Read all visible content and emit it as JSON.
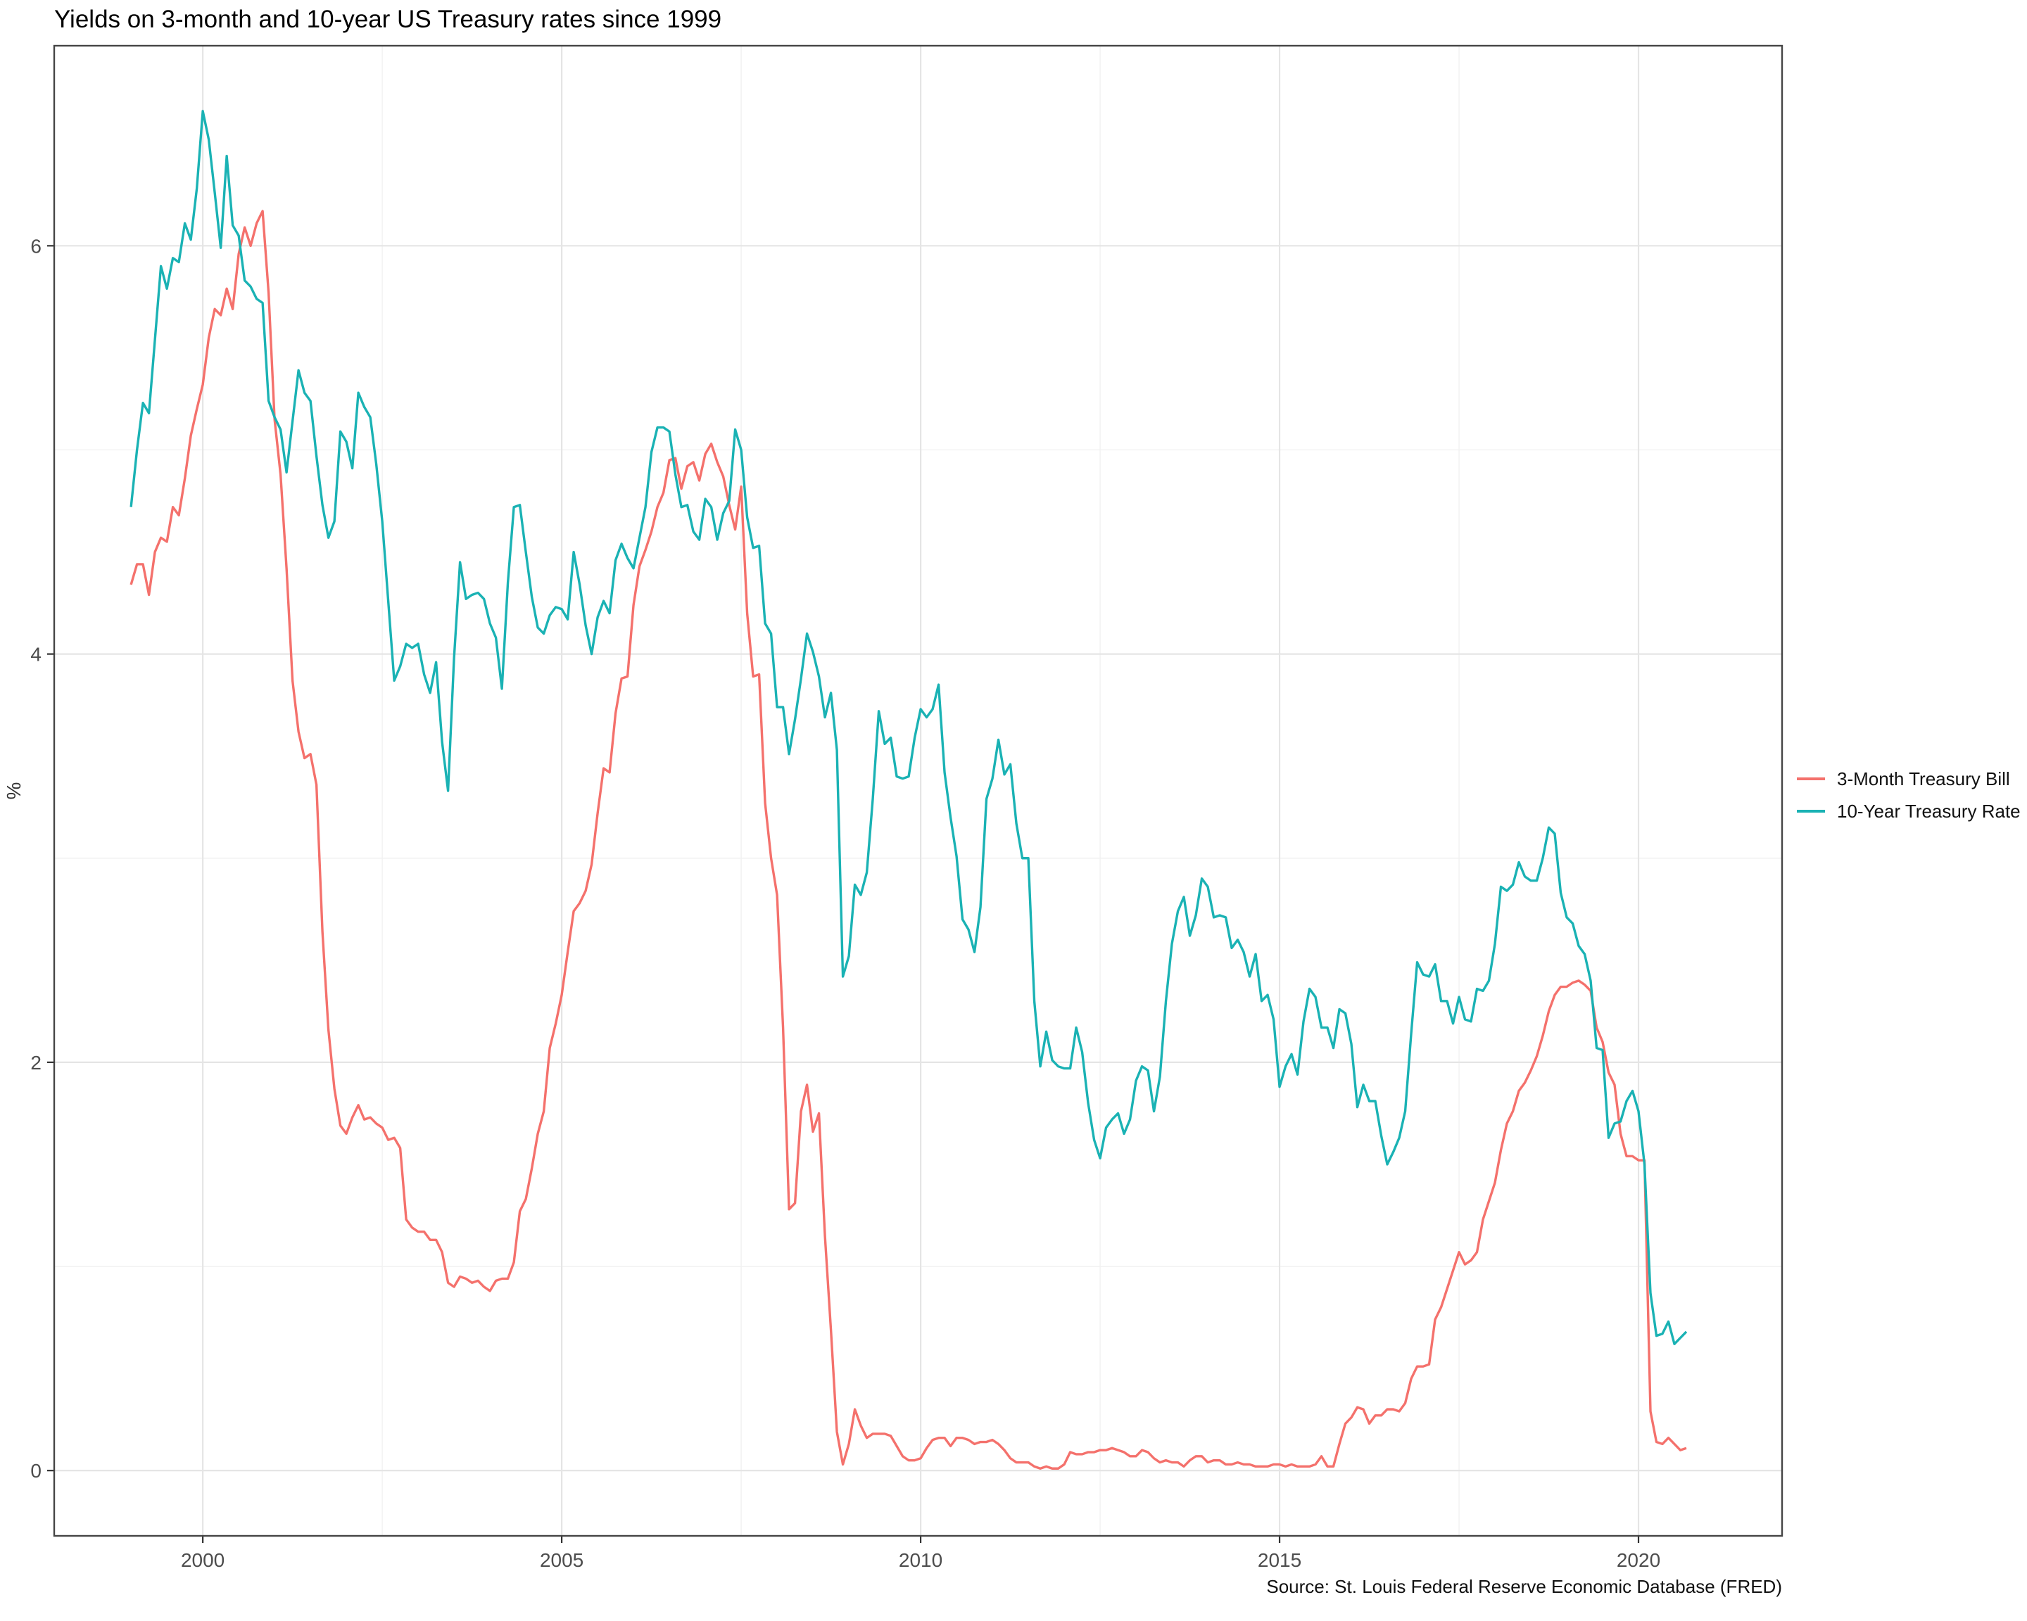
{
  "title": "Yields on 3-month and 10-year US Treasury rates since 1999",
  "y_axis_label": "%",
  "caption": "Source: St. Louis Federal Reserve Economic Database (FRED)",
  "colors": {
    "red": "#F4716C",
    "teal": "#1AB2B4"
  },
  "legend": {
    "items": [
      {
        "label": "3-Month Treasury Bill",
        "color": "#F4716C"
      },
      {
        "label": "10-Year Treasury Rate",
        "color": "#1AB2B4"
      }
    ]
  },
  "chart_data": {
    "type": "line",
    "title": "Yields on 3-month and 10-year US Treasury rates since 1999",
    "xlabel": "",
    "ylabel": "%",
    "frequency": "monthly",
    "x_start": {
      "year": 1999,
      "month": 1
    },
    "x_end": {
      "year": 2020,
      "month": 9
    },
    "x_ticks": [
      2000,
      2005,
      2010,
      2015,
      2020
    ],
    "x_minor_ticks": [
      2002.5,
      2007.5,
      2012.5,
      2017.5
    ],
    "y_ticks": [
      0,
      2,
      4,
      6
    ],
    "y_minor_ticks": [
      1,
      3,
      5
    ],
    "x_domain": [
      1997.93,
      2022.0
    ],
    "y_domain": [
      -0.32,
      6.98
    ],
    "grid": true,
    "legend_position": "right",
    "series": [
      {
        "name": "3-Month Treasury Bill",
        "color": "#F4716C",
        "values": [
          4.34,
          4.44,
          4.44,
          4.29,
          4.5,
          4.57,
          4.55,
          4.72,
          4.68,
          4.86,
          5.07,
          5.2,
          5.32,
          5.55,
          5.69,
          5.66,
          5.79,
          5.69,
          5.96,
          6.09,
          6.0,
          6.11,
          6.17,
          5.77,
          5.15,
          4.88,
          4.42,
          3.87,
          3.62,
          3.49,
          3.51,
          3.36,
          2.64,
          2.16,
          1.87,
          1.69,
          1.65,
          1.73,
          1.79,
          1.72,
          1.73,
          1.7,
          1.68,
          1.62,
          1.63,
          1.58,
          1.23,
          1.19,
          1.17,
          1.17,
          1.13,
          1.13,
          1.07,
          0.92,
          0.9,
          0.95,
          0.94,
          0.92,
          0.93,
          0.9,
          0.88,
          0.93,
          0.94,
          0.94,
          1.02,
          1.27,
          1.33,
          1.48,
          1.65,
          1.76,
          2.07,
          2.19,
          2.33,
          2.54,
          2.74,
          2.78,
          2.84,
          2.97,
          3.22,
          3.44,
          3.42,
          3.71,
          3.88,
          3.89,
          4.24,
          4.43,
          4.51,
          4.6,
          4.72,
          4.79,
          4.95,
          4.96,
          4.81,
          4.92,
          4.94,
          4.85,
          4.98,
          5.03,
          4.94,
          4.87,
          4.73,
          4.61,
          4.82,
          4.2,
          3.89,
          3.9,
          3.27,
          3.0,
          2.82,
          2.17,
          1.28,
          1.31,
          1.76,
          1.89,
          1.66,
          1.75,
          1.15,
          0.69,
          0.19,
          0.03,
          0.13,
          0.3,
          0.22,
          0.16,
          0.18,
          0.18,
          0.18,
          0.17,
          0.12,
          0.07,
          0.05,
          0.05,
          0.06,
          0.11,
          0.15,
          0.16,
          0.16,
          0.12,
          0.16,
          0.16,
          0.15,
          0.13,
          0.14,
          0.14,
          0.15,
          0.13,
          0.1,
          0.06,
          0.04,
          0.04,
          0.04,
          0.02,
          0.01,
          0.02,
          0.01,
          0.01,
          0.03,
          0.09,
          0.08,
          0.08,
          0.09,
          0.09,
          0.1,
          0.1,
          0.11,
          0.1,
          0.09,
          0.07,
          0.07,
          0.1,
          0.09,
          0.06,
          0.04,
          0.05,
          0.04,
          0.04,
          0.02,
          0.05,
          0.07,
          0.07,
          0.04,
          0.05,
          0.05,
          0.03,
          0.03,
          0.04,
          0.03,
          0.03,
          0.02,
          0.02,
          0.02,
          0.03,
          0.03,
          0.02,
          0.03,
          0.02,
          0.02,
          0.02,
          0.03,
          0.07,
          0.02,
          0.02,
          0.13,
          0.23,
          0.26,
          0.31,
          0.3,
          0.23,
          0.27,
          0.27,
          0.3,
          0.3,
          0.29,
          0.33,
          0.45,
          0.51,
          0.51,
          0.52,
          0.74,
          0.8,
          0.89,
          0.98,
          1.07,
          1.01,
          1.03,
          1.07,
          1.23,
          1.32,
          1.41,
          1.57,
          1.7,
          1.76,
          1.86,
          1.9,
          1.96,
          2.03,
          2.13,
          2.25,
          2.33,
          2.37,
          2.37,
          2.39,
          2.4,
          2.38,
          2.35,
          2.17,
          2.1,
          1.95,
          1.89,
          1.65,
          1.54,
          1.54,
          1.52,
          1.52,
          0.29,
          0.14,
          0.13,
          0.16,
          0.13,
          0.1,
          0.11
        ]
      },
      {
        "name": "10-Year Treasury Rate",
        "color": "#1AB2B4",
        "values": [
          4.72,
          5.0,
          5.23,
          5.18,
          5.54,
          5.9,
          5.79,
          5.94,
          5.92,
          6.11,
          6.03,
          6.28,
          6.66,
          6.52,
          6.26,
          5.99,
          6.44,
          6.1,
          6.05,
          5.83,
          5.8,
          5.74,
          5.72,
          5.24,
          5.16,
          5.1,
          4.89,
          5.14,
          5.39,
          5.28,
          5.24,
          4.97,
          4.73,
          4.57,
          4.65,
          5.09,
          5.04,
          4.91,
          5.28,
          5.21,
          5.16,
          4.93,
          4.65,
          4.26,
          3.87,
          3.94,
          4.05,
          4.03,
          4.05,
          3.9,
          3.81,
          3.96,
          3.57,
          3.33,
          3.98,
          4.45,
          4.27,
          4.29,
          4.3,
          4.27,
          4.15,
          4.08,
          3.83,
          4.35,
          4.72,
          4.73,
          4.5,
          4.28,
          4.13,
          4.1,
          4.19,
          4.23,
          4.22,
          4.17,
          4.5,
          4.34,
          4.14,
          4.0,
          4.18,
          4.26,
          4.2,
          4.46,
          4.54,
          4.47,
          4.42,
          4.57,
          4.72,
          4.99,
          5.11,
          5.11,
          5.09,
          4.88,
          4.72,
          4.73,
          4.6,
          4.56,
          4.76,
          4.72,
          4.56,
          4.69,
          4.75,
          5.1,
          5.0,
          4.67,
          4.52,
          4.53,
          4.15,
          4.1,
          3.74,
          3.74,
          3.51,
          3.68,
          3.88,
          4.1,
          4.01,
          3.89,
          3.69,
          3.81,
          3.53,
          2.42,
          2.52,
          2.87,
          2.82,
          2.93,
          3.29,
          3.72,
          3.56,
          3.59,
          3.4,
          3.39,
          3.4,
          3.59,
          3.73,
          3.69,
          3.73,
          3.85,
          3.42,
          3.2,
          3.01,
          2.7,
          2.65,
          2.54,
          2.76,
          3.29,
          3.39,
          3.58,
          3.41,
          3.46,
          3.17,
          3.0,
          3.0,
          2.3,
          1.98,
          2.15,
          2.01,
          1.98,
          1.97,
          1.97,
          2.17,
          2.05,
          1.8,
          1.62,
          1.53,
          1.68,
          1.72,
          1.75,
          1.65,
          1.72,
          1.91,
          1.98,
          1.96,
          1.76,
          1.93,
          2.3,
          2.58,
          2.74,
          2.81,
          2.62,
          2.72,
          2.9,
          2.86,
          2.71,
          2.72,
          2.71,
          2.56,
          2.6,
          2.54,
          2.42,
          2.53,
          2.3,
          2.33,
          2.21,
          1.88,
          1.98,
          2.04,
          1.94,
          2.2,
          2.36,
          2.32,
          2.17,
          2.17,
          2.07,
          2.26,
          2.24,
          2.09,
          1.78,
          1.89,
          1.81,
          1.81,
          1.64,
          1.5,
          1.56,
          1.63,
          1.76,
          2.14,
          2.49,
          2.43,
          2.42,
          2.48,
          2.3,
          2.3,
          2.19,
          2.32,
          2.21,
          2.2,
          2.36,
          2.35,
          2.4,
          2.58,
          2.86,
          2.84,
          2.87,
          2.98,
          2.91,
          2.89,
          2.89,
          3.0,
          3.15,
          3.12,
          2.83,
          2.71,
          2.68,
          2.57,
          2.53,
          2.4,
          2.07,
          2.06,
          1.63,
          1.7,
          1.71,
          1.81,
          1.86,
          1.76,
          1.5,
          0.87,
          0.66,
          0.67,
          0.73,
          0.62,
          0.65,
          0.68
        ]
      }
    ]
  }
}
